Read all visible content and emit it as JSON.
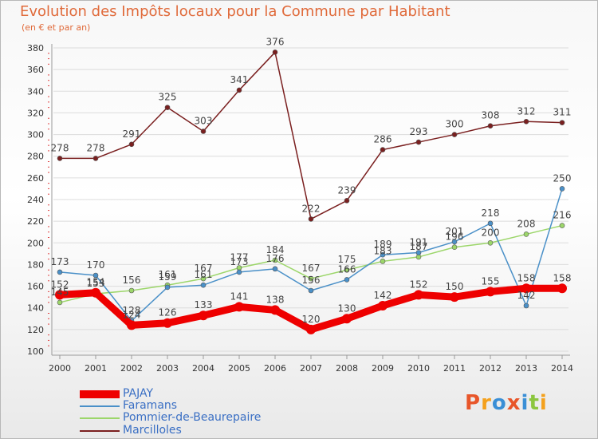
{
  "chart_data": {
    "type": "line",
    "title": "Evolution des Impôts locaux pour la Commune par Habitant",
    "subtitle": "(en € et par an)",
    "xlabel": "",
    "ylabel": "",
    "categories": [
      "2000",
      "2001",
      "2002",
      "2003",
      "2004",
      "2005",
      "2006",
      "2007",
      "2008",
      "2009",
      "2010",
      "2011",
      "2012",
      "2013",
      "2014"
    ],
    "ylim": [
      100,
      380
    ],
    "yticks": [
      100,
      120,
      140,
      160,
      180,
      200,
      220,
      240,
      260,
      280,
      300,
      320,
      340,
      360,
      380
    ],
    "legend_position": "bottom-left",
    "series": [
      {
        "name": "PAJAY",
        "color": "#ee0000",
        "width": 9,
        "values": [
          152,
          154,
          124,
          126,
          133,
          141,
          138,
          120,
          130,
          142,
          152,
          150,
          155,
          158,
          158
        ],
        "labels": [
          "152",
          "154",
          "124",
          "126",
          "133",
          "141",
          "138",
          "120",
          "130",
          "142",
          "152",
          "150",
          "155",
          "158",
          "158"
        ]
      },
      {
        "name": "Faramans",
        "color": "#4a90c8",
        "width": 1.5,
        "values": [
          173,
          170,
          128,
          159,
          161,
          173,
          176,
          156,
          166,
          189,
          191,
          201,
          218,
          142,
          250
        ],
        "labels": [
          "173",
          "170",
          "128",
          "159",
          "161",
          "173",
          "176",
          "156",
          "166",
          "189",
          "191",
          "201",
          "218",
          "142",
          "250"
        ]
      },
      {
        "name": "Pommier-de-Beaurepaire",
        "color": "#9cd66a",
        "width": 1.5,
        "values": [
          145,
          153,
          156,
          161,
          167,
          177,
          184,
          167,
          175,
          183,
          187,
          196,
          200,
          208,
          216
        ],
        "labels": [
          "145",
          "153",
          "156",
          "161",
          "167",
          "177",
          "184",
          "167",
          "175",
          "183",
          "187",
          "196",
          "200",
          "208",
          "216"
        ]
      },
      {
        "name": "Marcilloles",
        "color": "#7a1f1f",
        "width": 1.5,
        "values": [
          278,
          278,
          291,
          325,
          303,
          341,
          376,
          222,
          239,
          286,
          293,
          300,
          308,
          312,
          311
        ],
        "labels": [
          "278",
          "278",
          "291",
          "325",
          "303",
          "341",
          "376",
          "222",
          "239",
          "286",
          "293",
          "300",
          "308",
          "312",
          "311"
        ]
      }
    ]
  },
  "branding": {
    "logo_letters": [
      "P",
      "r",
      "o",
      "x",
      "i",
      "t",
      "i"
    ],
    "logo_colors": [
      "#e8562a",
      "#f4a11d",
      "#3a8fd6",
      "#e8562a",
      "#3a8fd6",
      "#8cc63f",
      "#f4a11d"
    ]
  }
}
